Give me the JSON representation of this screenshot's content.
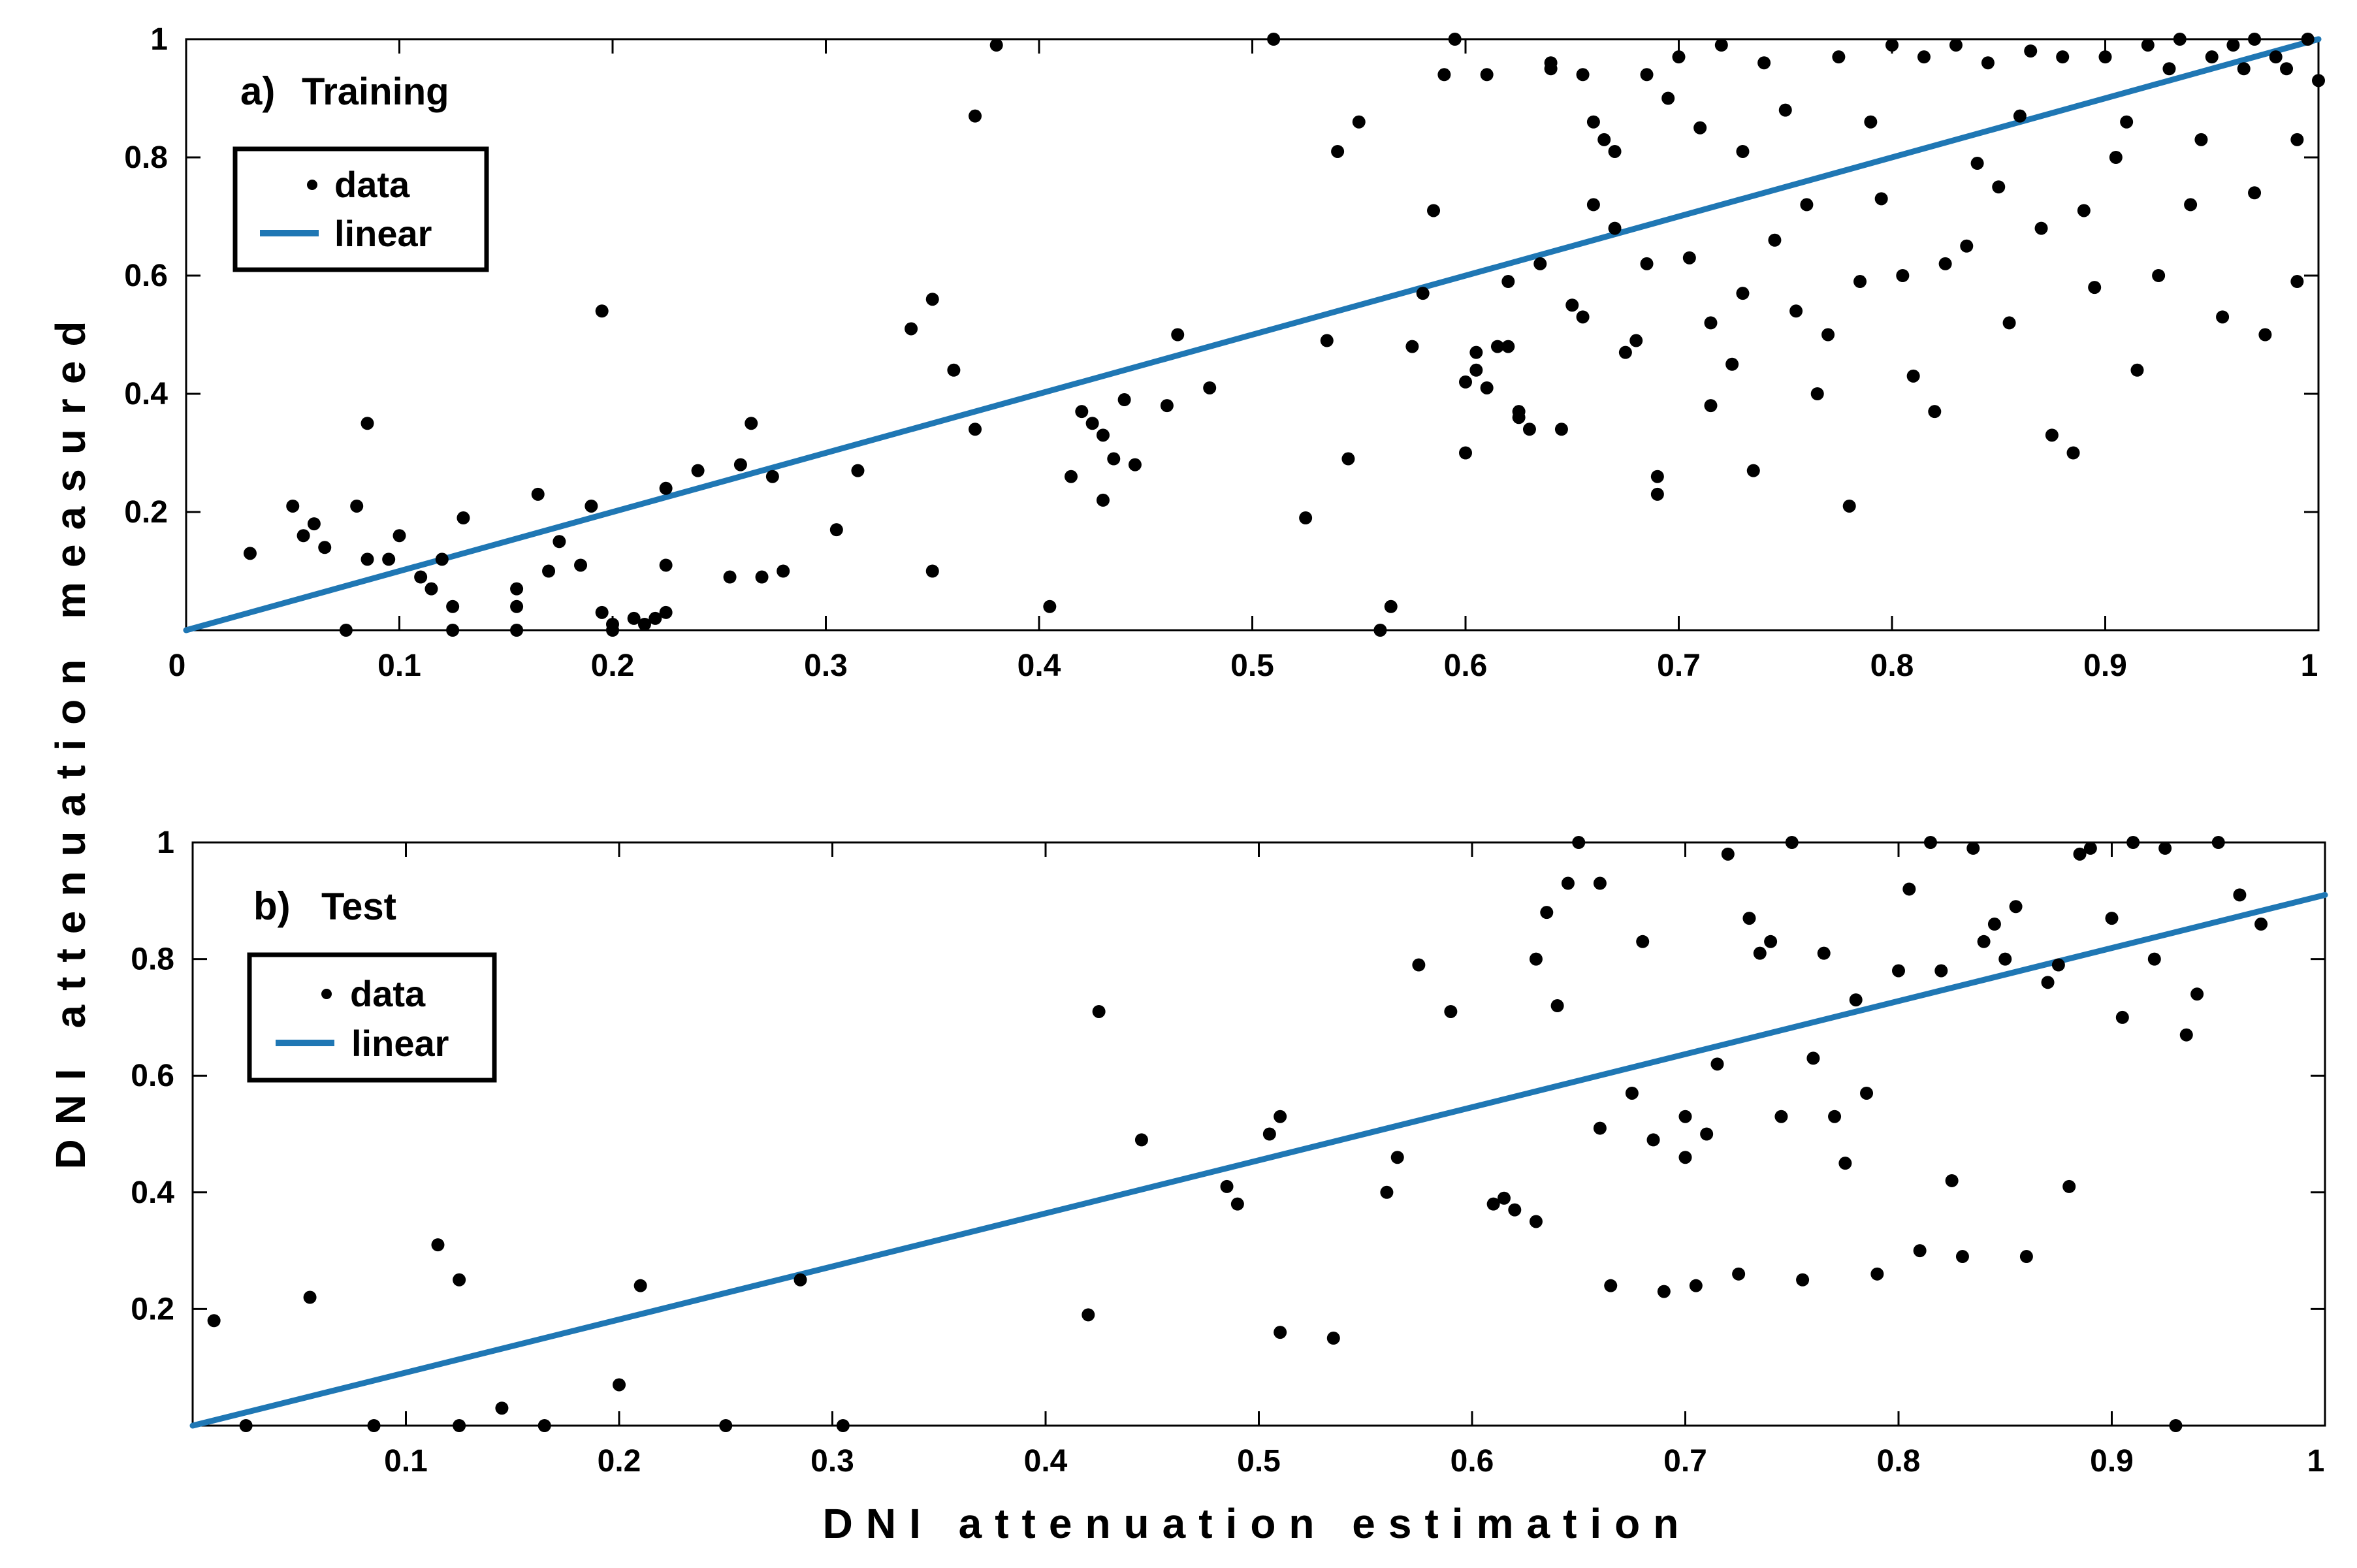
{
  "figure": {
    "ylabel": "DNI attenuation measured",
    "xlabel": "DNI attenuation estimation",
    "colors": {
      "data": "#000000",
      "linear": "#1f77b4",
      "axes": "#000000"
    }
  },
  "chart_data": [
    {
      "type": "scatter",
      "panel": "a)",
      "title": "Training",
      "legend": {
        "placement": "top-left",
        "entries": [
          "data",
          "linear"
        ]
      },
      "xlim": [
        0,
        1
      ],
      "ylim": [
        0,
        1
      ],
      "xticks": [
        "0",
        "0.1",
        "0.2",
        "0.3",
        "0.4",
        "0.5",
        "0.6",
        "0.7",
        "0.8",
        "0.9",
        "1"
      ],
      "xtick_values": [
        0,
        0.1,
        0.2,
        0.3,
        0.4,
        0.5,
        0.6,
        0.7,
        0.8,
        0.9,
        1
      ],
      "yticks": [
        "0.2",
        "0.4",
        "0.6",
        "0.8",
        "1"
      ],
      "ytick_values": [
        0.2,
        0.4,
        0.6,
        0.8,
        1
      ],
      "linear": {
        "x": [
          0,
          1
        ],
        "y": [
          0,
          1
        ]
      },
      "points": [
        [
          0.03,
          0.13
        ],
        [
          0.05,
          0.21
        ],
        [
          0.055,
          0.16
        ],
        [
          0.06,
          0.18
        ],
        [
          0.065,
          0.14
        ],
        [
          0.075,
          0.0
        ],
        [
          0.08,
          0.21
        ],
        [
          0.085,
          0.35
        ],
        [
          0.085,
          0.12
        ],
        [
          0.095,
          0.12
        ],
        [
          0.1,
          0.16
        ],
        [
          0.11,
          0.09
        ],
        [
          0.115,
          0.07
        ],
        [
          0.12,
          0.12
        ],
        [
          0.125,
          0.04
        ],
        [
          0.125,
          0.0
        ],
        [
          0.13,
          0.19
        ],
        [
          0.155,
          0.07
        ],
        [
          0.155,
          0.04
        ],
        [
          0.155,
          0.0
        ],
        [
          0.165,
          0.23
        ],
        [
          0.17,
          0.1
        ],
        [
          0.175,
          0.15
        ],
        [
          0.185,
          0.11
        ],
        [
          0.19,
          0.21
        ],
        [
          0.195,
          0.54
        ],
        [
          0.195,
          0.03
        ],
        [
          0.2,
          0.01
        ],
        [
          0.2,
          0.0
        ],
        [
          0.21,
          0.02
        ],
        [
          0.215,
          0.01
        ],
        [
          0.22,
          0.02
        ],
        [
          0.225,
          0.24
        ],
        [
          0.225,
          0.11
        ],
        [
          0.225,
          0.03
        ],
        [
          0.24,
          0.27
        ],
        [
          0.255,
          0.09
        ],
        [
          0.26,
          0.28
        ],
        [
          0.265,
          0.35
        ],
        [
          0.27,
          0.09
        ],
        [
          0.275,
          0.26
        ],
        [
          0.28,
          0.1
        ],
        [
          0.305,
          0.17
        ],
        [
          0.315,
          0.27
        ],
        [
          0.34,
          0.51
        ],
        [
          0.35,
          0.56
        ],
        [
          0.35,
          0.1
        ],
        [
          0.36,
          0.44
        ],
        [
          0.37,
          0.87
        ],
        [
          0.37,
          0.34
        ],
        [
          0.38,
          0.99
        ],
        [
          0.405,
          0.04
        ],
        [
          0.415,
          0.26
        ],
        [
          0.42,
          0.37
        ],
        [
          0.425,
          0.35
        ],
        [
          0.43,
          0.33
        ],
        [
          0.43,
          0.22
        ],
        [
          0.435,
          0.29
        ],
        [
          0.44,
          0.39
        ],
        [
          0.445,
          0.28
        ],
        [
          0.46,
          0.38
        ],
        [
          0.465,
          0.5
        ],
        [
          0.48,
          0.41
        ],
        [
          0.51,
          1.0
        ],
        [
          0.525,
          0.19
        ],
        [
          0.535,
          0.49
        ],
        [
          0.54,
          0.81
        ],
        [
          0.545,
          0.29
        ],
        [
          0.55,
          0.86
        ],
        [
          0.56,
          0.0
        ],
        [
          0.565,
          0.04
        ],
        [
          0.575,
          0.48
        ],
        [
          0.58,
          0.57
        ],
        [
          0.585,
          0.71
        ],
        [
          0.59,
          0.94
        ],
        [
          0.595,
          1.0
        ],
        [
          0.6,
          0.42
        ],
        [
          0.6,
          0.3
        ],
        [
          0.605,
          0.47
        ],
        [
          0.605,
          0.44
        ],
        [
          0.61,
          0.94
        ],
        [
          0.61,
          0.41
        ],
        [
          0.615,
          0.48
        ],
        [
          0.62,
          0.59
        ],
        [
          0.62,
          0.48
        ],
        [
          0.625,
          0.37
        ],
        [
          0.625,
          0.36
        ],
        [
          0.63,
          0.34
        ],
        [
          0.635,
          0.62
        ],
        [
          0.64,
          0.96
        ],
        [
          0.64,
          0.95
        ],
        [
          0.645,
          0.34
        ],
        [
          0.65,
          0.55
        ],
        [
          0.655,
          0.94
        ],
        [
          0.655,
          0.53
        ],
        [
          0.66,
          0.86
        ],
        [
          0.66,
          0.72
        ],
        [
          0.665,
          0.83
        ],
        [
          0.67,
          0.81
        ],
        [
          0.67,
          0.68
        ],
        [
          0.675,
          0.47
        ],
        [
          0.68,
          0.49
        ],
        [
          0.685,
          0.94
        ],
        [
          0.685,
          0.62
        ],
        [
          0.69,
          0.26
        ],
        [
          0.69,
          0.23
        ],
        [
          0.695,
          0.9
        ],
        [
          0.7,
          0.97
        ],
        [
          0.705,
          0.63
        ],
        [
          0.71,
          0.85
        ],
        [
          0.715,
          0.52
        ],
        [
          0.715,
          0.38
        ],
        [
          0.72,
          0.99
        ],
        [
          0.725,
          0.45
        ],
        [
          0.73,
          0.81
        ],
        [
          0.73,
          0.57
        ],
        [
          0.735,
          0.27
        ],
        [
          0.74,
          0.96
        ],
        [
          0.745,
          0.66
        ],
        [
          0.75,
          0.88
        ],
        [
          0.755,
          0.54
        ],
        [
          0.76,
          0.72
        ],
        [
          0.765,
          0.4
        ],
        [
          0.77,
          0.5
        ],
        [
          0.775,
          0.97
        ],
        [
          0.78,
          0.21
        ],
        [
          0.785,
          0.59
        ],
        [
          0.79,
          0.86
        ],
        [
          0.795,
          0.73
        ],
        [
          0.8,
          0.99
        ],
        [
          0.805,
          0.6
        ],
        [
          0.81,
          0.43
        ],
        [
          0.815,
          0.97
        ],
        [
          0.82,
          0.37
        ],
        [
          0.825,
          0.62
        ],
        [
          0.83,
          0.99
        ],
        [
          0.835,
          0.65
        ],
        [
          0.84,
          0.79
        ],
        [
          0.845,
          0.96
        ],
        [
          0.85,
          0.75
        ],
        [
          0.855,
          0.52
        ],
        [
          0.86,
          0.87
        ],
        [
          0.865,
          0.98
        ],
        [
          0.87,
          0.68
        ],
        [
          0.875,
          0.33
        ],
        [
          0.88,
          0.97
        ],
        [
          0.885,
          0.3
        ],
        [
          0.89,
          0.71
        ],
        [
          0.895,
          0.58
        ],
        [
          0.9,
          0.97
        ],
        [
          0.905,
          0.8
        ],
        [
          0.91,
          0.86
        ],
        [
          0.915,
          0.44
        ],
        [
          0.92,
          0.99
        ],
        [
          0.925,
          0.6
        ],
        [
          0.93,
          0.95
        ],
        [
          0.935,
          1.0
        ],
        [
          0.94,
          0.72
        ],
        [
          0.945,
          0.83
        ],
        [
          0.95,
          0.97
        ],
        [
          0.955,
          0.53
        ],
        [
          0.96,
          0.99
        ],
        [
          0.965,
          0.95
        ],
        [
          0.97,
          1.0
        ],
        [
          0.975,
          0.5
        ],
        [
          0.98,
          0.97
        ],
        [
          0.99,
          0.59
        ],
        [
          0.995,
          1.0
        ],
        [
          0.97,
          0.74
        ],
        [
          0.99,
          0.83
        ],
        [
          0.985,
          0.95
        ],
        [
          1.0,
          0.93
        ]
      ]
    },
    {
      "type": "scatter",
      "panel": "b)",
      "title": "Test",
      "legend": {
        "placement": "top-left",
        "entries": [
          "data",
          "linear"
        ]
      },
      "xlim": [
        0,
        1
      ],
      "ylim": [
        0,
        1
      ],
      "xticks": [
        "0.1",
        "0.2",
        "0.3",
        "0.4",
        "0.5",
        "0.6",
        "0.7",
        "0.8",
        "0.9",
        "1"
      ],
      "xtick_values": [
        0.1,
        0.2,
        0.3,
        0.4,
        0.5,
        0.6,
        0.7,
        0.8,
        0.9,
        1
      ],
      "yticks": [
        "0.2",
        "0.4",
        "0.6",
        "0.8",
        "1"
      ],
      "ytick_values": [
        0.2,
        0.4,
        0.6,
        0.8,
        1
      ],
      "linear": {
        "x": [
          0,
          1
        ],
        "y": [
          0,
          0.91
        ]
      },
      "points": [
        [
          0.01,
          0.18
        ],
        [
          0.025,
          0.0
        ],
        [
          0.055,
          0.22
        ],
        [
          0.085,
          0.0
        ],
        [
          0.115,
          0.31
        ],
        [
          0.125,
          0.0
        ],
        [
          0.125,
          0.25
        ],
        [
          0.145,
          0.03
        ],
        [
          0.165,
          0.0
        ],
        [
          0.2,
          0.07
        ],
        [
          0.21,
          0.24
        ],
        [
          0.25,
          0.0
        ],
        [
          0.285,
          0.25
        ],
        [
          0.305,
          0.0
        ],
        [
          0.42,
          0.19
        ],
        [
          0.425,
          0.71
        ],
        [
          0.445,
          0.49
        ],
        [
          0.485,
          0.41
        ],
        [
          0.49,
          0.38
        ],
        [
          0.505,
          0.5
        ],
        [
          0.51,
          0.16
        ],
        [
          0.51,
          0.53
        ],
        [
          0.535,
          0.15
        ],
        [
          0.56,
          0.4
        ],
        [
          0.565,
          0.46
        ],
        [
          0.575,
          0.79
        ],
        [
          0.59,
          0.71
        ],
        [
          0.61,
          0.38
        ],
        [
          0.615,
          0.39
        ],
        [
          0.62,
          0.37
        ],
        [
          0.63,
          0.35
        ],
        [
          0.63,
          0.8
        ],
        [
          0.635,
          0.88
        ],
        [
          0.64,
          0.72
        ],
        [
          0.645,
          0.93
        ],
        [
          0.65,
          1.0
        ],
        [
          0.66,
          0.51
        ],
        [
          0.66,
          0.93
        ],
        [
          0.665,
          0.24
        ],
        [
          0.675,
          0.57
        ],
        [
          0.68,
          0.83
        ],
        [
          0.685,
          0.49
        ],
        [
          0.69,
          0.23
        ],
        [
          0.7,
          0.53
        ],
        [
          0.7,
          0.46
        ],
        [
          0.705,
          0.24
        ],
        [
          0.71,
          0.5
        ],
        [
          0.715,
          0.62
        ],
        [
          0.72,
          0.98
        ],
        [
          0.725,
          0.26
        ],
        [
          0.73,
          0.87
        ],
        [
          0.735,
          0.81
        ],
        [
          0.74,
          0.83
        ],
        [
          0.745,
          0.53
        ],
        [
          0.75,
          1.0
        ],
        [
          0.755,
          0.25
        ],
        [
          0.76,
          0.63
        ],
        [
          0.765,
          0.81
        ],
        [
          0.77,
          0.53
        ],
        [
          0.775,
          0.45
        ],
        [
          0.78,
          0.73
        ],
        [
          0.785,
          0.57
        ],
        [
          0.79,
          0.26
        ],
        [
          0.8,
          0.78
        ],
        [
          0.805,
          0.92
        ],
        [
          0.81,
          0.3
        ],
        [
          0.815,
          1.0
        ],
        [
          0.82,
          0.78
        ],
        [
          0.825,
          0.42
        ],
        [
          0.83,
          0.29
        ],
        [
          0.835,
          0.99
        ],
        [
          0.84,
          0.83
        ],
        [
          0.845,
          0.86
        ],
        [
          0.85,
          0.8
        ],
        [
          0.855,
          0.89
        ],
        [
          0.86,
          0.29
        ],
        [
          0.87,
          0.76
        ],
        [
          0.875,
          0.79
        ],
        [
          0.88,
          0.41
        ],
        [
          0.885,
          0.98
        ],
        [
          0.89,
          0.99
        ],
        [
          0.9,
          0.87
        ],
        [
          0.905,
          0.7
        ],
        [
          0.91,
          1.0
        ],
        [
          0.92,
          0.8
        ],
        [
          0.925,
          0.99
        ],
        [
          0.93,
          0.0
        ],
        [
          0.935,
          0.67
        ],
        [
          0.94,
          0.74
        ],
        [
          0.95,
          1.0
        ],
        [
          0.96,
          0.91
        ],
        [
          0.97,
          0.86
        ]
      ]
    }
  ]
}
